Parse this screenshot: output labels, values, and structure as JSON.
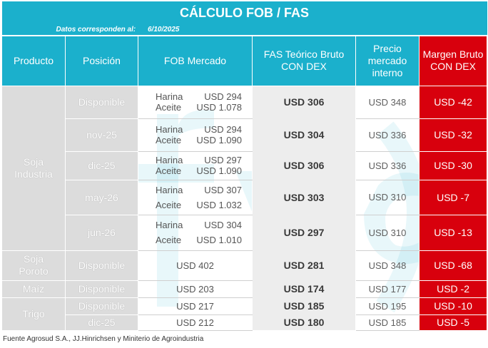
{
  "title": "CÁLCULO FOB / FAS",
  "date_label": "Datos corresponden al:",
  "date_value": "6/10/2025",
  "headers": {
    "producto": "Producto",
    "posicion": "Posición",
    "fob": "FOB Mercado",
    "fas_line1": "FAS Teórico Bruto",
    "fas_line2": "CON DEX",
    "precio_line1": "Precio",
    "precio_line2": "mercado",
    "precio_line3": "interno",
    "margen_line1": "Margen Bruto",
    "margen_line2": "CON DEX"
  },
  "groups": {
    "soja_industria": {
      "name_line1": "Soja",
      "name_line2": "Industria",
      "rows": [
        {
          "pos": "Disponible",
          "harina_label": "Harina",
          "harina": "USD 294",
          "aceite_label": "Aceite",
          "aceite": "USD 1.078",
          "fas": "USD 306",
          "precio": "USD 348",
          "margen": "USD -42"
        },
        {
          "pos": "nov-25",
          "harina_label": "Harina",
          "harina": "USD 294",
          "aceite_label": "Aceite",
          "aceite": "USD 1.090",
          "fas": "USD 304",
          "precio": "USD 336",
          "margen": "USD -32"
        },
        {
          "pos": "dic-25",
          "harina_label": "Harina",
          "harina": "USD 297",
          "aceite_label": "Aceite",
          "aceite": "USD 1.090",
          "fas": "USD 306",
          "precio": "USD 336",
          "margen": "USD -30"
        },
        {
          "pos": "may-26",
          "harina_label": "Harina",
          "harina": "USD 307",
          "aceite_label": "Aceite",
          "aceite": "USD 1.032",
          "fas": "USD 303",
          "precio": "USD 310",
          "margen": "USD -7"
        },
        {
          "pos": "jun-26",
          "harina_label": "Harina",
          "harina": "USD 304",
          "aceite_label": "Aceite",
          "aceite": "USD 1.010",
          "fas": "USD 297",
          "precio": "USD 310",
          "margen": "USD -13"
        }
      ]
    },
    "soja_poroto": {
      "name_line1": "Soja",
      "name_line2": "Poroto",
      "rows": [
        {
          "pos": "Disponible",
          "fob": "USD 402",
          "fas": "USD 281",
          "precio": "USD 348",
          "margen": "USD -68"
        }
      ]
    },
    "maiz": {
      "name": "Maíz",
      "rows": [
        {
          "pos": "Disponible",
          "fob": "USD 203",
          "fas": "USD 174",
          "precio": "USD 177",
          "margen": "USD -2"
        }
      ]
    },
    "trigo": {
      "name": "Trigo",
      "rows": [
        {
          "pos": "Disponible",
          "fob": "USD 217",
          "fas": "USD 185",
          "precio": "USD 195",
          "margen": "USD -10"
        },
        {
          "pos": "dic-25",
          "fob": "USD 212",
          "fas": "USD 180",
          "precio": "USD 185",
          "margen": "USD -5"
        }
      ]
    }
  },
  "watermark_letters": "(f)yc",
  "source": "Fuente Agrosud S.A., JJ.Hinrichsen y Miniterio de Agroindustria",
  "colors": {
    "header": "#1bb0cc",
    "negative": "#d8000d",
    "position_bg": "#dcdcdc",
    "teorico_bg": "#ededed"
  }
}
